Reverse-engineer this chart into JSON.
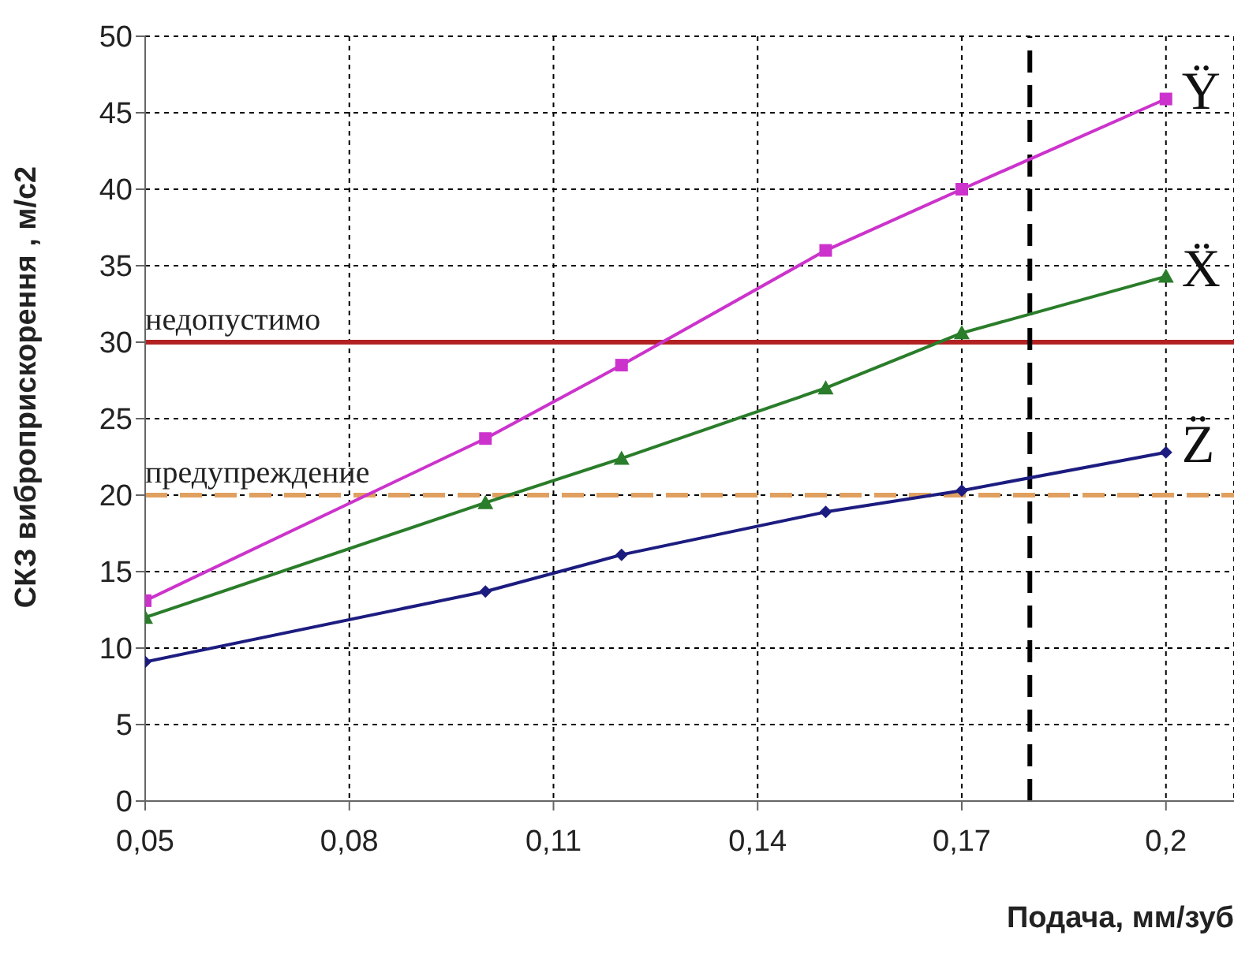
{
  "chart_data": {
    "type": "line",
    "xlabel": "Подача, мм/зуб",
    "ylabel": "СКЗ виброприскорення , м/с2",
    "x": [
      0.05,
      0.1,
      0.12,
      0.15,
      0.17,
      0.2
    ],
    "series": [
      {
        "name": "Ÿ",
        "color": "#cc33cc",
        "marker": "square",
        "values": [
          13.1,
          23.7,
          28.5,
          36.0,
          40.0,
          45.9
        ]
      },
      {
        "name": "Ẍ",
        "color": "#2a7d2a",
        "marker": "triangle",
        "values": [
          12.0,
          19.5,
          22.4,
          27.0,
          30.6,
          34.3
        ]
      },
      {
        "name": "Z̈",
        "color": "#1c1c80",
        "marker": "diamond",
        "values": [
          9.1,
          13.7,
          16.1,
          18.9,
          20.3,
          22.8
        ]
      }
    ],
    "xlim": [
      0.05,
      0.21
    ],
    "xticks": [
      {
        "value": 0.05,
        "label": "0,05"
      },
      {
        "value": 0.08,
        "label": "0,08"
      },
      {
        "value": 0.11,
        "label": "0,11"
      },
      {
        "value": 0.14,
        "label": "0,14"
      },
      {
        "value": 0.17,
        "label": "0,17"
      },
      {
        "value": 0.2,
        "label": "0,2"
      }
    ],
    "ylim": [
      0,
      50
    ],
    "yticks": [
      0,
      5,
      10,
      15,
      20,
      25,
      30,
      35,
      40,
      45,
      50
    ],
    "ref_lines": [
      {
        "axis": "y",
        "value": 30,
        "label": "недопустимо",
        "color": "#b22222",
        "line_style": "solid"
      },
      {
        "axis": "y",
        "value": 20,
        "label": "предупреждение",
        "color": "#e0a060",
        "line_style": "dashed"
      },
      {
        "axis": "x",
        "value": 0.18,
        "label": null,
        "color": "#000000",
        "line_style": "dashed"
      }
    ],
    "grid": true,
    "legend": false,
    "line_style": "solid"
  }
}
